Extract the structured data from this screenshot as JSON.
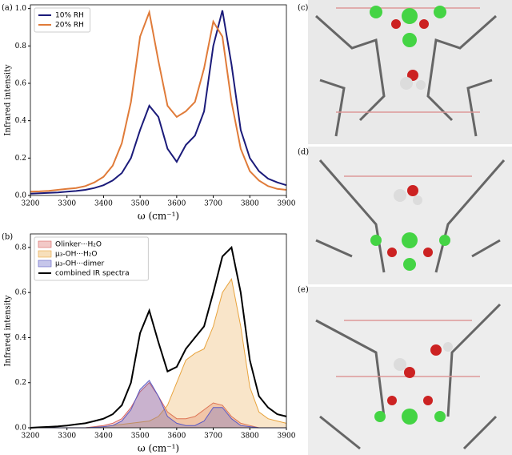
{
  "chart_data": [
    {
      "type": "line",
      "label": "(a)",
      "xlabel": "ω (cm⁻¹)",
      "ylabel": "Infrared intensity",
      "xlim": [
        3200,
        3900
      ],
      "xticks": [
        3200,
        3300,
        3400,
        3500,
        3600,
        3700,
        3800,
        3900
      ],
      "ylim": [
        0,
        1.02
      ],
      "yticks": [
        {
          "value": 0,
          "label": "0.0"
        },
        0.2,
        0.4,
        0.6,
        0.8,
        {
          "value": 1,
          "label": "1.0"
        }
      ],
      "legend": "upper left",
      "x": [
        3200,
        3225,
        3250,
        3275,
        3300,
        3325,
        3350,
        3375,
        3400,
        3425,
        3450,
        3475,
        3500,
        3525,
        3550,
        3575,
        3600,
        3625,
        3650,
        3675,
        3700,
        3725,
        3750,
        3775,
        3800,
        3825,
        3850,
        3875,
        3900
      ],
      "series": [
        {
          "name": "10% RH",
          "color": "#1b1b7a",
          "values": [
            0.01,
            0.012,
            0.014,
            0.016,
            0.02,
            0.024,
            0.03,
            0.04,
            0.055,
            0.08,
            0.12,
            0.2,
            0.35,
            0.48,
            0.42,
            0.25,
            0.18,
            0.27,
            0.32,
            0.45,
            0.8,
            0.99,
            0.7,
            0.35,
            0.2,
            0.13,
            0.09,
            0.07,
            0.055
          ]
        },
        {
          "name": "20% RH",
          "color": "#e07b39",
          "values": [
            0.02,
            0.022,
            0.025,
            0.03,
            0.035,
            0.04,
            0.05,
            0.07,
            0.1,
            0.16,
            0.28,
            0.5,
            0.85,
            0.98,
            0.72,
            0.48,
            0.42,
            0.45,
            0.5,
            0.68,
            0.93,
            0.85,
            0.5,
            0.25,
            0.13,
            0.08,
            0.05,
            0.035,
            0.03
          ]
        }
      ]
    },
    {
      "type": "line",
      "label": "(b)",
      "xlabel": "ω (cm⁻¹)",
      "ylabel": "Infrared intensity",
      "xlim": [
        3200,
        3900
      ],
      "xticks": [
        3200,
        3300,
        3400,
        3500,
        3600,
        3700,
        3800,
        3900
      ],
      "ylim": [
        0,
        0.86
      ],
      "yticks": [
        {
          "value": 0,
          "label": "0.0"
        },
        0.2,
        0.4,
        0.6,
        0.8
      ],
      "legend": "upper left",
      "x": [
        3200,
        3225,
        3250,
        3275,
        3300,
        3325,
        3350,
        3375,
        3400,
        3425,
        3450,
        3475,
        3500,
        3525,
        3550,
        3575,
        3600,
        3625,
        3650,
        3675,
        3700,
        3725,
        3750,
        3775,
        3800,
        3825,
        3850,
        3875,
        3900
      ],
      "series": [
        {
          "name": "Olinker···H₂O",
          "color": "#d9645f",
          "fill": true,
          "values": [
            0,
            0,
            0,
            0,
            0,
            0,
            0,
            0.005,
            0.01,
            0.02,
            0.04,
            0.09,
            0.16,
            0.2,
            0.14,
            0.07,
            0.04,
            0.04,
            0.05,
            0.08,
            0.11,
            0.1,
            0.05,
            0.02,
            0.01,
            0,
            0,
            0,
            0
          ]
        },
        {
          "name": "μ₃-OH···H₂O",
          "color": "#e8a33c",
          "fill": true,
          "values": [
            0,
            0,
            0,
            0,
            0,
            0,
            0,
            0.003,
            0.005,
            0.01,
            0.015,
            0.02,
            0.025,
            0.03,
            0.05,
            0.1,
            0.2,
            0.3,
            0.33,
            0.35,
            0.45,
            0.6,
            0.66,
            0.45,
            0.18,
            0.07,
            0.04,
            0.03,
            0.02
          ]
        },
        {
          "name": "μ₃-OH···dimer",
          "color": "#5b5bc4",
          "fill": true,
          "values": [
            0,
            0,
            0,
            0,
            0,
            0,
            0,
            0.002,
            0.005,
            0.01,
            0.03,
            0.08,
            0.17,
            0.21,
            0.14,
            0.05,
            0.02,
            0.01,
            0.01,
            0.03,
            0.09,
            0.09,
            0.04,
            0.01,
            0.005,
            0,
            0,
            0,
            0
          ]
        },
        {
          "name": "combined IR spectra",
          "color": "#000000",
          "values": [
            0,
            0.002,
            0.004,
            0.006,
            0.01,
            0.015,
            0.02,
            0.03,
            0.04,
            0.06,
            0.1,
            0.2,
            0.42,
            0.52,
            0.38,
            0.25,
            0.27,
            0.35,
            0.4,
            0.45,
            0.6,
            0.76,
            0.8,
            0.6,
            0.3,
            0.14,
            0.09,
            0.06,
            0.05
          ]
        }
      ]
    }
  ],
  "panel_labels": [
    "(c)",
    "(d)",
    "(e)"
  ]
}
